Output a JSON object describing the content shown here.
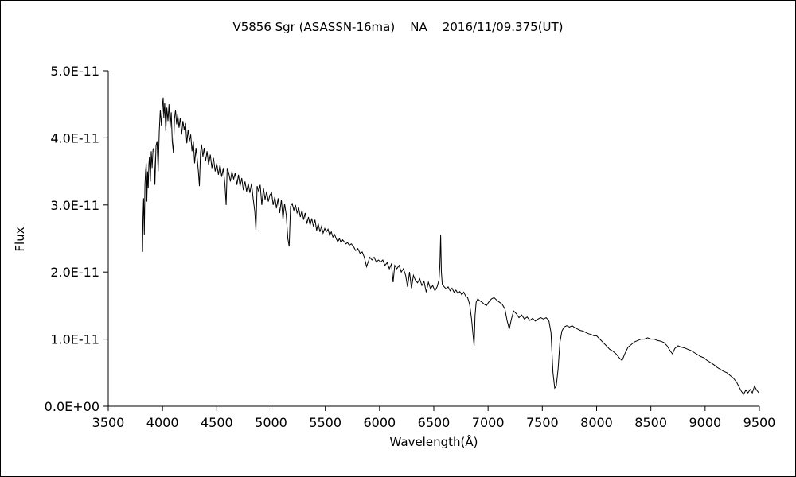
{
  "page": {
    "background": "#ffffff",
    "border_color": "#000000"
  },
  "chart_data": {
    "type": "line",
    "title": "V5856 Sgr (ASASSN-16ma)    NA    2016/11/09.375(UT)",
    "xlabel": "Wavelength(Å)",
    "ylabel": "Flux",
    "line_color": "#000000",
    "grid": false,
    "legend": "none",
    "xlim": [
      3500,
      9500
    ],
    "ylim": [
      0,
      5e-11
    ],
    "ylim_scaled": [
      0,
      5
    ],
    "flux_scale": "1e-11",
    "x_tick_values": [
      3500,
      4000,
      4500,
      5000,
      5500,
      6000,
      6500,
      7000,
      7500,
      8000,
      8500,
      9000,
      9500
    ],
    "x_tick_labels": [
      "3500",
      "4000",
      "4500",
      "5000",
      "5500",
      "6000",
      "6500",
      "7000",
      "7500",
      "8000",
      "8500",
      "9000",
      "9500"
    ],
    "y_tick_values": [
      0,
      1,
      2,
      3,
      4,
      5
    ],
    "y_tick_labels": [
      "0.0E+00",
      "1.0E-11",
      "2.0E-11",
      "3.0E-11",
      "4.0E-11",
      "5.0E-11"
    ],
    "points": [
      [
        3812,
        2.5
      ],
      [
        3816,
        2.3
      ],
      [
        3820,
        2.8
      ],
      [
        3826,
        3.1
      ],
      [
        3832,
        2.55
      ],
      [
        3838,
        3.3
      ],
      [
        3844,
        3.5
      ],
      [
        3850,
        3.62
      ],
      [
        3856,
        3.05
      ],
      [
        3862,
        3.5
      ],
      [
        3868,
        3.25
      ],
      [
        3874,
        3.6
      ],
      [
        3880,
        3.72
      ],
      [
        3888,
        3.35
      ],
      [
        3896,
        3.8
      ],
      [
        3904,
        3.55
      ],
      [
        3912,
        3.82
      ],
      [
        3920,
        3.85
      ],
      [
        3930,
        3.3
      ],
      [
        3940,
        3.88
      ],
      [
        3950,
        3.95
      ],
      [
        3960,
        3.5
      ],
      [
        3970,
        4.1
      ],
      [
        3980,
        4.42
      ],
      [
        3990,
        4.18
      ],
      [
        4000,
        4.5
      ],
      [
        4006,
        4.6
      ],
      [
        4012,
        4.3
      ],
      [
        4020,
        4.52
      ],
      [
        4030,
        4.1
      ],
      [
        4040,
        4.45
      ],
      [
        4050,
        4.25
      ],
      [
        4060,
        4.5
      ],
      [
        4070,
        4.15
      ],
      [
        4080,
        4.38
      ],
      [
        4090,
        3.95
      ],
      [
        4100,
        3.78
      ],
      [
        4110,
        4.28
      ],
      [
        4120,
        4.42
      ],
      [
        4130,
        4.2
      ],
      [
        4140,
        4.35
      ],
      [
        4152,
        4.15
      ],
      [
        4164,
        4.3
      ],
      [
        4176,
        4.05
      ],
      [
        4188,
        4.25
      ],
      [
        4200,
        4.12
      ],
      [
        4212,
        4.22
      ],
      [
        4224,
        3.92
      ],
      [
        4236,
        4.12
      ],
      [
        4248,
        3.95
      ],
      [
        4260,
        4.05
      ],
      [
        4272,
        3.8
      ],
      [
        4284,
        3.95
      ],
      [
        4296,
        3.62
      ],
      [
        4308,
        3.85
      ],
      [
        4320,
        3.68
      ],
      [
        4330,
        3.5
      ],
      [
        4340,
        3.28
      ],
      [
        4350,
        3.78
      ],
      [
        4360,
        3.9
      ],
      [
        4372,
        3.72
      ],
      [
        4384,
        3.85
      ],
      [
        4396,
        3.65
      ],
      [
        4410,
        3.8
      ],
      [
        4425,
        3.6
      ],
      [
        4440,
        3.75
      ],
      [
        4455,
        3.55
      ],
      [
        4470,
        3.7
      ],
      [
        4485,
        3.5
      ],
      [
        4500,
        3.62
      ],
      [
        4515,
        3.45
      ],
      [
        4530,
        3.6
      ],
      [
        4545,
        3.42
      ],
      [
        4560,
        3.55
      ],
      [
        4575,
        3.3
      ],
      [
        4586,
        3.0
      ],
      [
        4596,
        3.55
      ],
      [
        4610,
        3.48
      ],
      [
        4625,
        3.35
      ],
      [
        4640,
        3.5
      ],
      [
        4655,
        3.38
      ],
      [
        4670,
        3.48
      ],
      [
        4685,
        3.3
      ],
      [
        4700,
        3.45
      ],
      [
        4715,
        3.28
      ],
      [
        4730,
        3.4
      ],
      [
        4745,
        3.22
      ],
      [
        4760,
        3.35
      ],
      [
        4775,
        3.2
      ],
      [
        4790,
        3.32
      ],
      [
        4805,
        3.18
      ],
      [
        4820,
        3.32
      ],
      [
        4835,
        3.1
      ],
      [
        4850,
        2.9
      ],
      [
        4861,
        2.62
      ],
      [
        4872,
        3.28
      ],
      [
        4886,
        3.2
      ],
      [
        4900,
        3.3
      ],
      [
        4915,
        3.0
      ],
      [
        4930,
        3.25
      ],
      [
        4945,
        3.08
      ],
      [
        4960,
        3.2
      ],
      [
        4975,
        3.05
      ],
      [
        4990,
        3.15
      ],
      [
        5005,
        3.18
      ],
      [
        5020,
        3.0
      ],
      [
        5035,
        3.12
      ],
      [
        5050,
        2.95
      ],
      [
        5065,
        3.1
      ],
      [
        5080,
        2.88
      ],
      [
        5095,
        3.08
      ],
      [
        5110,
        2.78
      ],
      [
        5125,
        3.02
      ],
      [
        5140,
        2.85
      ],
      [
        5155,
        2.5
      ],
      [
        5167,
        2.38
      ],
      [
        5180,
        2.98
      ],
      [
        5195,
        3.02
      ],
      [
        5210,
        2.92
      ],
      [
        5225,
        3.0
      ],
      [
        5240,
        2.88
      ],
      [
        5255,
        2.95
      ],
      [
        5270,
        2.82
      ],
      [
        5285,
        2.92
      ],
      [
        5300,
        2.78
      ],
      [
        5315,
        2.88
      ],
      [
        5330,
        2.72
      ],
      [
        5345,
        2.82
      ],
      [
        5360,
        2.7
      ],
      [
        5375,
        2.8
      ],
      [
        5390,
        2.68
      ],
      [
        5405,
        2.78
      ],
      [
        5420,
        2.62
      ],
      [
        5435,
        2.72
      ],
      [
        5450,
        2.6
      ],
      [
        5465,
        2.68
      ],
      [
        5480,
        2.58
      ],
      [
        5495,
        2.65
      ],
      [
        5510,
        2.6
      ],
      [
        5525,
        2.64
      ],
      [
        5540,
        2.55
      ],
      [
        5555,
        2.6
      ],
      [
        5570,
        2.52
      ],
      [
        5585,
        2.56
      ],
      [
        5600,
        2.5
      ],
      [
        5615,
        2.45
      ],
      [
        5630,
        2.5
      ],
      [
        5645,
        2.44
      ],
      [
        5660,
        2.48
      ],
      [
        5675,
        2.45
      ],
      [
        5690,
        2.42
      ],
      [
        5705,
        2.44
      ],
      [
        5720,
        2.4
      ],
      [
        5740,
        2.42
      ],
      [
        5760,
        2.38
      ],
      [
        5780,
        2.32
      ],
      [
        5800,
        2.35
      ],
      [
        5820,
        2.28
      ],
      [
        5840,
        2.3
      ],
      [
        5860,
        2.22
      ],
      [
        5880,
        2.08
      ],
      [
        5895,
        2.15
      ],
      [
        5910,
        2.22
      ],
      [
        5930,
        2.18
      ],
      [
        5950,
        2.22
      ],
      [
        5970,
        2.15
      ],
      [
        5990,
        2.18
      ],
      [
        6010,
        2.15
      ],
      [
        6030,
        2.18
      ],
      [
        6050,
        2.1
      ],
      [
        6070,
        2.14
      ],
      [
        6090,
        2.05
      ],
      [
        6110,
        2.12
      ],
      [
        6125,
        1.85
      ],
      [
        6140,
        2.1
      ],
      [
        6160,
        2.05
      ],
      [
        6180,
        2.1
      ],
      [
        6200,
        2.0
      ],
      [
        6220,
        2.05
      ],
      [
        6240,
        1.95
      ],
      [
        6258,
        1.78
      ],
      [
        6276,
        2.0
      ],
      [
        6294,
        1.76
      ],
      [
        6312,
        1.95
      ],
      [
        6330,
        1.88
      ],
      [
        6350,
        1.84
      ],
      [
        6370,
        1.9
      ],
      [
        6390,
        1.8
      ],
      [
        6410,
        1.86
      ],
      [
        6430,
        1.7
      ],
      [
        6450,
        1.85
      ],
      [
        6470,
        1.75
      ],
      [
        6490,
        1.8
      ],
      [
        6510,
        1.72
      ],
      [
        6530,
        1.78
      ],
      [
        6548,
        1.88
      ],
      [
        6556,
        2.1
      ],
      [
        6563,
        2.55
      ],
      [
        6570,
        2.0
      ],
      [
        6578,
        1.82
      ],
      [
        6596,
        1.78
      ],
      [
        6614,
        1.75
      ],
      [
        6632,
        1.78
      ],
      [
        6650,
        1.72
      ],
      [
        6668,
        1.76
      ],
      [
        6686,
        1.7
      ],
      [
        6704,
        1.73
      ],
      [
        6722,
        1.68
      ],
      [
        6740,
        1.71
      ],
      [
        6758,
        1.66
      ],
      [
        6776,
        1.7
      ],
      [
        6794,
        1.64
      ],
      [
        6812,
        1.62
      ],
      [
        6830,
        1.52
      ],
      [
        6848,
        1.3
      ],
      [
        6862,
        1.05
      ],
      [
        6871,
        0.9
      ],
      [
        6880,
        1.35
      ],
      [
        6890,
        1.55
      ],
      [
        6905,
        1.6
      ],
      [
        6925,
        1.57
      ],
      [
        6945,
        1.55
      ],
      [
        6965,
        1.52
      ],
      [
        6985,
        1.5
      ],
      [
        7005,
        1.55
      ],
      [
        7030,
        1.6
      ],
      [
        7055,
        1.62
      ],
      [
        7080,
        1.58
      ],
      [
        7105,
        1.55
      ],
      [
        7130,
        1.52
      ],
      [
        7155,
        1.45
      ],
      [
        7175,
        1.28
      ],
      [
        7195,
        1.15
      ],
      [
        7215,
        1.3
      ],
      [
        7235,
        1.42
      ],
      [
        7260,
        1.38
      ],
      [
        7285,
        1.32
      ],
      [
        7310,
        1.36
      ],
      [
        7335,
        1.3
      ],
      [
        7360,
        1.33
      ],
      [
        7385,
        1.28
      ],
      [
        7410,
        1.31
      ],
      [
        7435,
        1.27
      ],
      [
        7460,
        1.3
      ],
      [
        7485,
        1.32
      ],
      [
        7510,
        1.3
      ],
      [
        7535,
        1.32
      ],
      [
        7560,
        1.28
      ],
      [
        7580,
        1.1
      ],
      [
        7598,
        0.5
      ],
      [
        7614,
        0.27
      ],
      [
        7628,
        0.3
      ],
      [
        7645,
        0.55
      ],
      [
        7662,
        0.95
      ],
      [
        7680,
        1.12
      ],
      [
        7700,
        1.18
      ],
      [
        7725,
        1.2
      ],
      [
        7750,
        1.18
      ],
      [
        7775,
        1.2
      ],
      [
        7800,
        1.17
      ],
      [
        7825,
        1.15
      ],
      [
        7850,
        1.13
      ],
      [
        7875,
        1.12
      ],
      [
        7900,
        1.1
      ],
      [
        7925,
        1.08
      ],
      [
        7950,
        1.07
      ],
      [
        7975,
        1.05
      ],
      [
        8000,
        1.05
      ],
      [
        8030,
        1.0
      ],
      [
        8060,
        0.95
      ],
      [
        8090,
        0.9
      ],
      [
        8120,
        0.85
      ],
      [
        8150,
        0.82
      ],
      [
        8180,
        0.78
      ],
      [
        8210,
        0.72
      ],
      [
        8235,
        0.68
      ],
      [
        8260,
        0.78
      ],
      [
        8290,
        0.88
      ],
      [
        8320,
        0.92
      ],
      [
        8350,
        0.96
      ],
      [
        8380,
        0.98
      ],
      [
        8410,
        1.0
      ],
      [
        8440,
        1.0
      ],
      [
        8470,
        1.02
      ],
      [
        8500,
        1.0
      ],
      [
        8530,
        1.0
      ],
      [
        8560,
        0.98
      ],
      [
        8590,
        0.97
      ],
      [
        8620,
        0.95
      ],
      [
        8650,
        0.9
      ],
      [
        8680,
        0.82
      ],
      [
        8700,
        0.78
      ],
      [
        8720,
        0.86
      ],
      [
        8750,
        0.9
      ],
      [
        8780,
        0.88
      ],
      [
        8810,
        0.87
      ],
      [
        8840,
        0.85
      ],
      [
        8870,
        0.83
      ],
      [
        8900,
        0.8
      ],
      [
        8930,
        0.77
      ],
      [
        8960,
        0.74
      ],
      [
        8990,
        0.72
      ],
      [
        9020,
        0.68
      ],
      [
        9050,
        0.65
      ],
      [
        9080,
        0.62
      ],
      [
        9110,
        0.58
      ],
      [
        9140,
        0.55
      ],
      [
        9170,
        0.52
      ],
      [
        9200,
        0.5
      ],
      [
        9230,
        0.46
      ],
      [
        9260,
        0.42
      ],
      [
        9290,
        0.36
      ],
      [
        9315,
        0.28
      ],
      [
        9335,
        0.22
      ],
      [
        9355,
        0.18
      ],
      [
        9375,
        0.24
      ],
      [
        9395,
        0.2
      ],
      [
        9415,
        0.25
      ],
      [
        9435,
        0.2
      ],
      [
        9455,
        0.3
      ],
      [
        9475,
        0.24
      ],
      [
        9495,
        0.2
      ]
    ]
  }
}
